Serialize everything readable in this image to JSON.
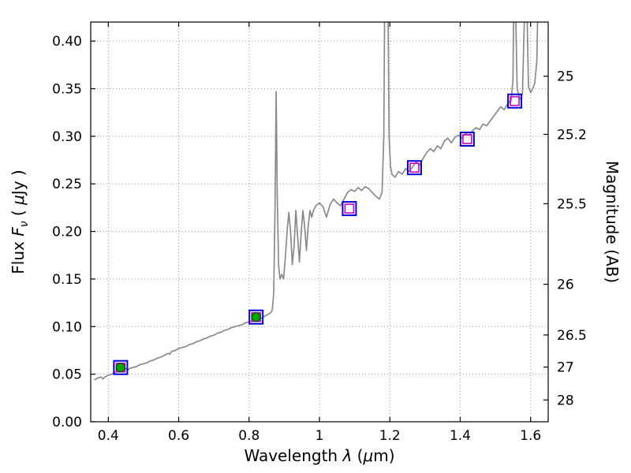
{
  "chart_data": {
    "type": "line",
    "title": "",
    "xlabel": {
      "text": "Wavelength λ (μm)",
      "segments": [
        {
          "t": "Wavelength  "
        },
        {
          "t": "λ",
          "i": true
        },
        {
          "t": " ("
        },
        {
          "t": "μ",
          "i": true
        },
        {
          "t": "m)"
        }
      ]
    },
    "ylabel_left": {
      "text": "Flux Fν ( μJy )",
      "segments": [
        {
          "t": "Flux  "
        },
        {
          "t": "F",
          "i": true
        },
        {
          "t": "ν",
          "i": true,
          "sub": true
        },
        {
          "t": "  ( "
        },
        {
          "t": "μ",
          "i": true
        },
        {
          "t": "Jy )"
        }
      ]
    },
    "ylabel_right": {
      "text": "Magnitude (AB)",
      "segments": [
        {
          "t": "Magnitude (AB)"
        }
      ]
    },
    "xlim": [
      0.35,
      1.65
    ],
    "ylim": [
      0.0,
      0.42
    ],
    "grid": true,
    "x_ticks": [
      {
        "v": 0.4,
        "label": "0.4"
      },
      {
        "v": 0.6,
        "label": "0.6"
      },
      {
        "v": 0.8,
        "label": "0.8"
      },
      {
        "v": 1.0,
        "label": "1"
      },
      {
        "v": 1.2,
        "label": "1.2"
      },
      {
        "v": 1.4,
        "label": "1.4"
      },
      {
        "v": 1.6,
        "label": "1.6"
      }
    ],
    "y_ticks_left": [
      {
        "v": 0.0,
        "label": "0.00"
      },
      {
        "v": 0.05,
        "label": "0.05"
      },
      {
        "v": 0.1,
        "label": "0.10"
      },
      {
        "v": 0.15,
        "label": "0.15"
      },
      {
        "v": 0.2,
        "label": "0.20"
      },
      {
        "v": 0.25,
        "label": "0.25"
      },
      {
        "v": 0.3,
        "label": "0.30"
      },
      {
        "v": 0.35,
        "label": "0.35"
      },
      {
        "v": 0.4,
        "label": "0.40"
      }
    ],
    "y_ticks_right": [
      {
        "v": 0.3631,
        "label": "25"
      },
      {
        "v": 0.302,
        "label": "25.2"
      },
      {
        "v": 0.2291,
        "label": "25.5"
      },
      {
        "v": 0.1445,
        "label": "26"
      },
      {
        "v": 0.0912,
        "label": "26.5"
      },
      {
        "v": 0.0575,
        "label": "27"
      },
      {
        "v": 0.0229,
        "label": "28"
      }
    ],
    "colors": {
      "axis": "#000000",
      "grid": "#999999",
      "spectrum": "#8a8a8a",
      "square_blue": "#0000dd",
      "square_magenta": "#c800c8",
      "point_green": "#00a500",
      "point_green_edge": "#005500"
    },
    "series": [
      {
        "name": "model-spectrum",
        "data_name": "spectrum-line-group",
        "type": "line",
        "color": "#8a8a8a",
        "width": 1.7,
        "points": [
          [
            0.36,
            0.044
          ],
          [
            0.37,
            0.046
          ],
          [
            0.38,
            0.047
          ],
          [
            0.385,
            0.045
          ],
          [
            0.39,
            0.047
          ],
          [
            0.4,
            0.049
          ],
          [
            0.41,
            0.05
          ],
          [
            0.42,
            0.052
          ],
          [
            0.43,
            0.053
          ],
          [
            0.44,
            0.055
          ],
          [
            0.45,
            0.056
          ],
          [
            0.455,
            0.054
          ],
          [
            0.46,
            0.056
          ],
          [
            0.47,
            0.057
          ],
          [
            0.48,
            0.058
          ],
          [
            0.49,
            0.06
          ],
          [
            0.5,
            0.061
          ],
          [
            0.51,
            0.062
          ],
          [
            0.52,
            0.064
          ],
          [
            0.53,
            0.065
          ],
          [
            0.54,
            0.067
          ],
          [
            0.55,
            0.068
          ],
          [
            0.56,
            0.07
          ],
          [
            0.57,
            0.072
          ],
          [
            0.575,
            0.071
          ],
          [
            0.58,
            0.074
          ],
          [
            0.59,
            0.075
          ],
          [
            0.6,
            0.077
          ],
          [
            0.61,
            0.078
          ],
          [
            0.62,
            0.079
          ],
          [
            0.63,
            0.081
          ],
          [
            0.64,
            0.082
          ],
          [
            0.65,
            0.084
          ],
          [
            0.66,
            0.085
          ],
          [
            0.67,
            0.087
          ],
          [
            0.68,
            0.088
          ],
          [
            0.69,
            0.09
          ],
          [
            0.7,
            0.091
          ],
          [
            0.71,
            0.093
          ],
          [
            0.72,
            0.094
          ],
          [
            0.73,
            0.096
          ],
          [
            0.74,
            0.097
          ],
          [
            0.75,
            0.099
          ],
          [
            0.76,
            0.1
          ],
          [
            0.77,
            0.101
          ],
          [
            0.78,
            0.102
          ],
          [
            0.79,
            0.104
          ],
          [
            0.8,
            0.105
          ],
          [
            0.81,
            0.106
          ],
          [
            0.82,
            0.107
          ],
          [
            0.83,
            0.108
          ],
          [
            0.84,
            0.11
          ],
          [
            0.85,
            0.112
          ],
          [
            0.86,
            0.114
          ],
          [
            0.866,
            0.117
          ],
          [
            0.87,
            0.135
          ],
          [
            0.874,
            0.23
          ],
          [
            0.877,
            0.347
          ],
          [
            0.88,
            0.24
          ],
          [
            0.884,
            0.165
          ],
          [
            0.888,
            0.15
          ],
          [
            0.893,
            0.155
          ],
          [
            0.898,
            0.15
          ],
          [
            0.903,
            0.172
          ],
          [
            0.908,
            0.2
          ],
          [
            0.913,
            0.22
          ],
          [
            0.918,
            0.2
          ],
          [
            0.923,
            0.165
          ],
          [
            0.928,
            0.185
          ],
          [
            0.933,
            0.222
          ],
          [
            0.938,
            0.195
          ],
          [
            0.943,
            0.168
          ],
          [
            0.948,
            0.198
          ],
          [
            0.953,
            0.222
          ],
          [
            0.958,
            0.205
          ],
          [
            0.963,
            0.18
          ],
          [
            0.968,
            0.205
          ],
          [
            0.973,
            0.222
          ],
          [
            0.978,
            0.215
          ],
          [
            0.983,
            0.222
          ],
          [
            0.99,
            0.227
          ],
          [
            1.0,
            0.23
          ],
          [
            1.01,
            0.226
          ],
          [
            1.02,
            0.215
          ],
          [
            1.03,
            0.228
          ],
          [
            1.04,
            0.234
          ],
          [
            1.05,
            0.23
          ],
          [
            1.06,
            0.227
          ],
          [
            1.07,
            0.234
          ],
          [
            1.08,
            0.241
          ],
          [
            1.09,
            0.244
          ],
          [
            1.1,
            0.242
          ],
          [
            1.11,
            0.246
          ],
          [
            1.12,
            0.243
          ],
          [
            1.13,
            0.247
          ],
          [
            1.14,
            0.245
          ],
          [
            1.15,
            0.241
          ],
          [
            1.16,
            0.237
          ],
          [
            1.17,
            0.234
          ],
          [
            1.178,
            0.241
          ],
          [
            1.183,
            0.3
          ],
          [
            1.186,
            0.48
          ],
          [
            1.19,
            0.62
          ],
          [
            1.194,
            0.47
          ],
          [
            1.198,
            0.3
          ],
          [
            1.202,
            0.268
          ],
          [
            1.206,
            0.26
          ],
          [
            1.215,
            0.257
          ],
          [
            1.225,
            0.263
          ],
          [
            1.235,
            0.26
          ],
          [
            1.245,
            0.266
          ],
          [
            1.255,
            0.263
          ],
          [
            1.265,
            0.268
          ],
          [
            1.275,
            0.273
          ],
          [
            1.285,
            0.27
          ],
          [
            1.295,
            0.277
          ],
          [
            1.305,
            0.283
          ],
          [
            1.315,
            0.287
          ],
          [
            1.325,
            0.284
          ],
          [
            1.335,
            0.29
          ],
          [
            1.345,
            0.287
          ],
          [
            1.355,
            0.295
          ],
          [
            1.365,
            0.298
          ],
          [
            1.375,
            0.293
          ],
          [
            1.385,
            0.299
          ],
          [
            1.395,
            0.301
          ],
          [
            1.405,
            0.298
          ],
          [
            1.415,
            0.303
          ],
          [
            1.425,
            0.301
          ],
          [
            1.435,
            0.306
          ],
          [
            1.445,
            0.309
          ],
          [
            1.455,
            0.307
          ],
          [
            1.465,
            0.313
          ],
          [
            1.475,
            0.311
          ],
          [
            1.485,
            0.316
          ],
          [
            1.495,
            0.321
          ],
          [
            1.505,
            0.326
          ],
          [
            1.515,
            0.331
          ],
          [
            1.525,
            0.328
          ],
          [
            1.535,
            0.334
          ],
          [
            1.545,
            0.338
          ],
          [
            1.55,
            0.36
          ],
          [
            1.554,
            0.52
          ],
          [
            1.558,
            0.42
          ],
          [
            1.562,
            0.35
          ],
          [
            1.567,
            0.342
          ],
          [
            1.572,
            0.339
          ],
          [
            1.577,
            0.345
          ],
          [
            1.582,
            0.42
          ],
          [
            1.586,
            0.56
          ],
          [
            1.59,
            0.43
          ],
          [
            1.594,
            0.352
          ],
          [
            1.6,
            0.346
          ],
          [
            1.606,
            0.35
          ],
          [
            1.612,
            0.356
          ],
          [
            1.618,
            0.38
          ],
          [
            1.622,
            0.47
          ],
          [
            1.626,
            0.62
          ]
        ]
      },
      {
        "name": "photometry-blue-squares",
        "data_name": "photometry-blue-squares",
        "type": "scatter",
        "marker": "open-square",
        "color": "#0000dd",
        "size": 17,
        "lw": 2,
        "points": [
          [
            0.435,
            0.057
          ],
          [
            0.82,
            0.11
          ],
          [
            1.085,
            0.224
          ],
          [
            1.27,
            0.267
          ],
          [
            1.42,
            0.297
          ],
          [
            1.555,
            0.337
          ]
        ]
      },
      {
        "name": "photometry-magenta-squares",
        "data_name": "photometry-magenta-squares",
        "type": "scatter",
        "marker": "open-square",
        "color": "#c800c8",
        "size": 11,
        "lw": 1.6,
        "points": [
          [
            0.435,
            0.057
          ],
          [
            0.82,
            0.11
          ],
          [
            1.085,
            0.224
          ],
          [
            1.27,
            0.267
          ],
          [
            1.42,
            0.297
          ],
          [
            1.555,
            0.337
          ]
        ]
      },
      {
        "name": "observed-green-points",
        "data_name": "observed-green-points",
        "type": "scatter",
        "marker": "circle",
        "color": "#00a500",
        "edge": "#005500",
        "size": 11,
        "points": [
          [
            0.435,
            0.057
          ],
          [
            0.82,
            0.11
          ]
        ]
      }
    ]
  }
}
